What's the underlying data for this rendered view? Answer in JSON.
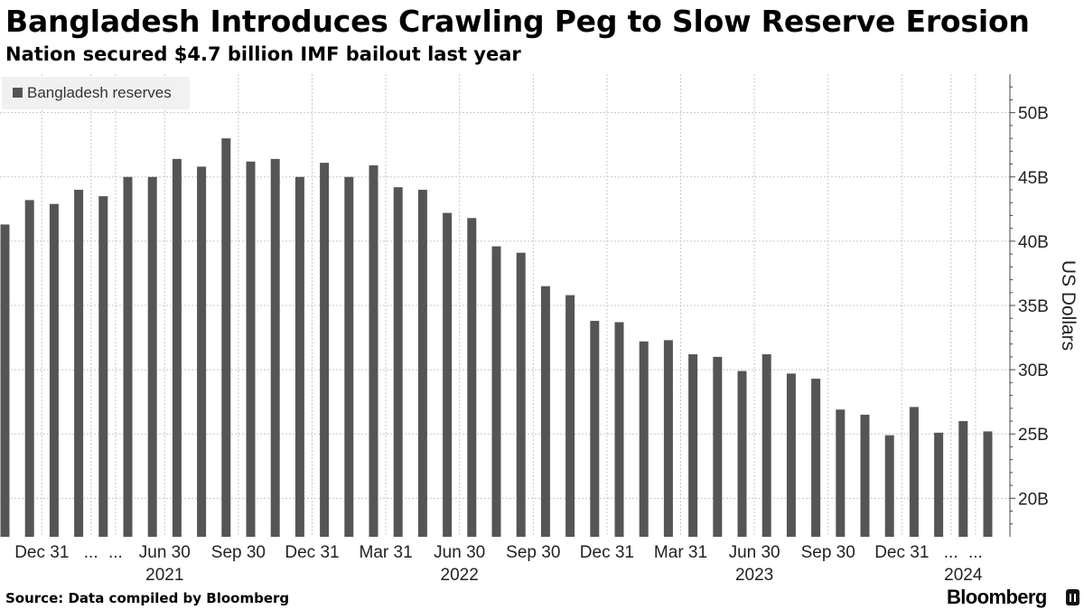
{
  "header": {
    "title": "Bangladesh Introduces Crawling Peg to Slow Reserve Erosion",
    "subtitle": "Nation secured $4.7 billion IMF bailout last year"
  },
  "footer": {
    "source": "Source: Data compiled by Bloomberg",
    "brand": "Bloomberg"
  },
  "colors": {
    "bar": "#555555",
    "grid": "#c8c8c8",
    "legend_bg": "#f1f1f1"
  },
  "chart_data": {
    "type": "bar",
    "title": "Bangladesh Introduces Crawling Peg to Slow Reserve Erosion",
    "subtitle": "Nation secured $4.7 billion IMF bailout last year",
    "legend": [
      "Bangladesh reserves"
    ],
    "legend_position": "top-left",
    "ylabel": "US Dollars",
    "xlabel": "",
    "y_axis_side": "right",
    "ylim": [
      17,
      53
    ],
    "yticks": [
      20,
      25,
      30,
      35,
      40,
      45,
      50
    ],
    "ytick_labels": [
      "20B",
      "25B",
      "30B",
      "35B",
      "40B",
      "45B",
      "50B"
    ],
    "grid": true,
    "series": [
      {
        "name": "Bangladesh reserves",
        "values": [
          41.3,
          43.2,
          42.9,
          44.0,
          43.5,
          45.0,
          45.0,
          46.4,
          45.8,
          48.0,
          46.2,
          46.4,
          45.0,
          46.1,
          45.0,
          45.9,
          44.2,
          44.0,
          42.2,
          41.8,
          39.6,
          39.1,
          36.5,
          35.8,
          33.8,
          33.7,
          32.2,
          32.3,
          31.2,
          31.0,
          29.9,
          31.2,
          29.7,
          29.3,
          26.9,
          26.5,
          24.9,
          27.1,
          25.1,
          26.0,
          25.2
        ]
      }
    ],
    "x_tick_labels": [
      {
        "label": "Dec 31",
        "bar_index": 1.5
      },
      {
        "label": "...",
        "bar_index": 3.5
      },
      {
        "label": "...",
        "bar_index": 4.5
      },
      {
        "label": "Jun 30",
        "bar_index": 6.5
      },
      {
        "label": "Sep 30",
        "bar_index": 9.5
      },
      {
        "label": "Dec 31",
        "bar_index": 12.5
      },
      {
        "label": "Mar 31",
        "bar_index": 15.5
      },
      {
        "label": "Jun 30",
        "bar_index": 18.5
      },
      {
        "label": "Sep 30",
        "bar_index": 21.5
      },
      {
        "label": "Dec 31",
        "bar_index": 24.5
      },
      {
        "label": "Mar 31",
        "bar_index": 27.5
      },
      {
        "label": "Jun 30",
        "bar_index": 30.5
      },
      {
        "label": "Sep 30",
        "bar_index": 33.5
      },
      {
        "label": "Dec 31",
        "bar_index": 36.5
      },
      {
        "label": "...",
        "bar_index": 38.5
      },
      {
        "label": "...",
        "bar_index": 39.5
      }
    ],
    "x_year_labels": [
      {
        "label": "2021",
        "bar_index": 6.5
      },
      {
        "label": "2022",
        "bar_index": 18.5
      },
      {
        "label": "2023",
        "bar_index": 30.5
      },
      {
        "label": "2024",
        "bar_index": 39.0
      }
    ]
  }
}
